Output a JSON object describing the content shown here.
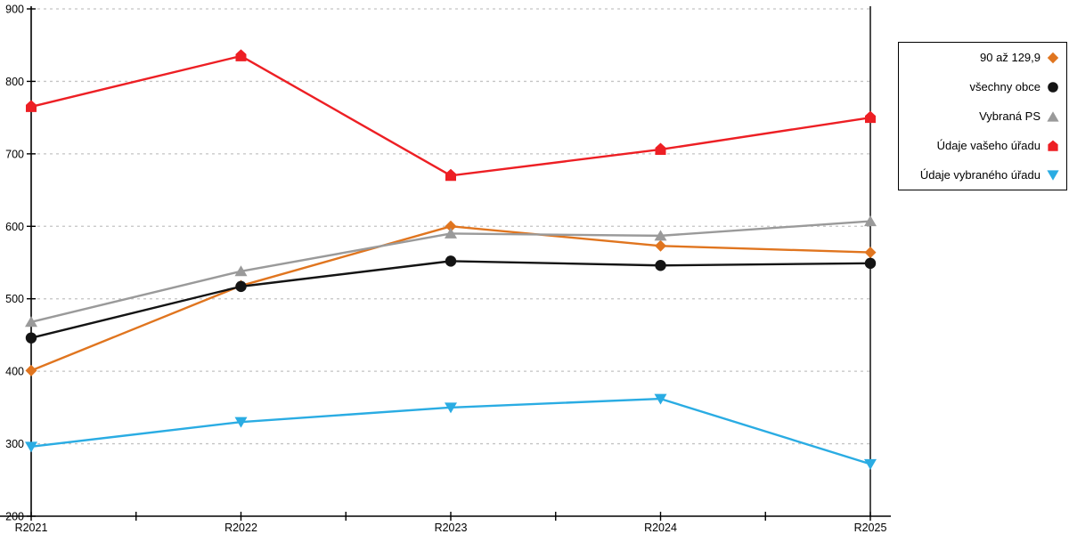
{
  "chart_data": {
    "type": "line",
    "x_categories": [
      "R2021",
      "R2022",
      "R2023",
      "R2024",
      "R2025"
    ],
    "series": [
      {
        "name": "90 až 129,9",
        "marker": "diamond",
        "color": "#E0751F",
        "values": [
          401,
          518,
          600,
          573,
          564
        ]
      },
      {
        "name": "všechny obce",
        "marker": "circle",
        "color": "#141414",
        "values": [
          446,
          517,
          552,
          546,
          549
        ]
      },
      {
        "name": "Vybraná PS",
        "marker": "triangle-up",
        "color": "#9A9A9A",
        "values": [
          468,
          538,
          590,
          587,
          607
        ]
      },
      {
        "name": "Údaje vašeho úřadu",
        "marker": "pentagon-up",
        "color": "#ED1F24",
        "values": [
          765,
          835,
          670,
          706,
          750
        ]
      },
      {
        "name": "Údaje vybraného úřadu",
        "marker": "triangle-down",
        "color": "#2AACE3",
        "values": [
          296,
          330,
          350,
          362,
          272
        ]
      }
    ],
    "title": "",
    "xlabel": "",
    "ylabel": "",
    "ylim": [
      200,
      900
    ],
    "ytick_step": 100,
    "y_tick_labels": [
      "200",
      "300",
      "400",
      "500",
      "600",
      "700",
      "800",
      "900"
    ],
    "grid": "horizontal-dotted",
    "gridline_color": "#C4C4C4",
    "axis_color": "#000000",
    "legend_position": "right-outside",
    "legend_border_color": "#000000"
  }
}
